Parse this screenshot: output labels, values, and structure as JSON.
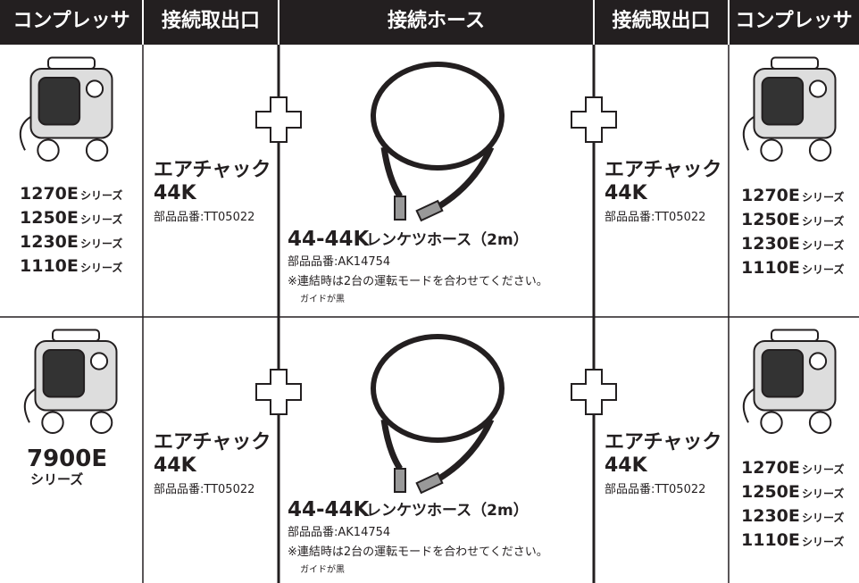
{
  "header": {
    "columns": [
      "コンプレッサ",
      "接続取出口",
      "接続ホース",
      "接続取出口",
      "コンプレッサ"
    ]
  },
  "rows": [
    {
      "left": {
        "models": [
          {
            "model": "1270E",
            "suffix": "シリーズ"
          },
          {
            "model": "1250E",
            "suffix": "シリーズ"
          },
          {
            "model": "1230E",
            "suffix": "シリーズ"
          },
          {
            "model": "1110E",
            "suffix": "シリーズ"
          }
        ]
      },
      "outlet_left": {
        "name": "エアチャック",
        "size": "44K",
        "part": "部品品番:TT05022"
      },
      "hose": {
        "name": "44-44K",
        "suffix": "レンケツホース（2m）",
        "part": "部品品番:AK14754",
        "note": "※連結時は2台の運転モードを合わせてください。",
        "guide": "ガイドが黒"
      },
      "outlet_right": {
        "name": "エアチャック",
        "size": "44K",
        "part": "部品品番:TT05022"
      },
      "right": {
        "models": [
          {
            "model": "1270E",
            "suffix": "シリーズ"
          },
          {
            "model": "1250E",
            "suffix": "シリーズ"
          },
          {
            "model": "1230E",
            "suffix": "シリーズ"
          },
          {
            "model": "1110E",
            "suffix": "シリーズ"
          }
        ]
      }
    },
    {
      "left": {
        "models": [
          {
            "model": "7900E",
            "suffix": "シリーズ"
          }
        ]
      },
      "outlet_left": {
        "name": "エアチャック",
        "size": "44K",
        "part": "部品品番:TT05022"
      },
      "hose": {
        "name": "44-44K",
        "suffix": "レンケツホース（2m）",
        "part": "部品品番:AK14754",
        "note": "※連結時は2台の運転モードを合わせてください。",
        "guide": "ガイドが黒"
      },
      "outlet_right": {
        "name": "エアチャック",
        "size": "44K",
        "part": "部品品番:TT05022"
      },
      "right": {
        "models": [
          {
            "model": "1270E",
            "suffix": "シリーズ"
          },
          {
            "model": "1250E",
            "suffix": "シリーズ"
          },
          {
            "model": "1230E",
            "suffix": "シリーズ"
          },
          {
            "model": "1110E",
            "suffix": "シリーズ"
          }
        ]
      }
    }
  ]
}
